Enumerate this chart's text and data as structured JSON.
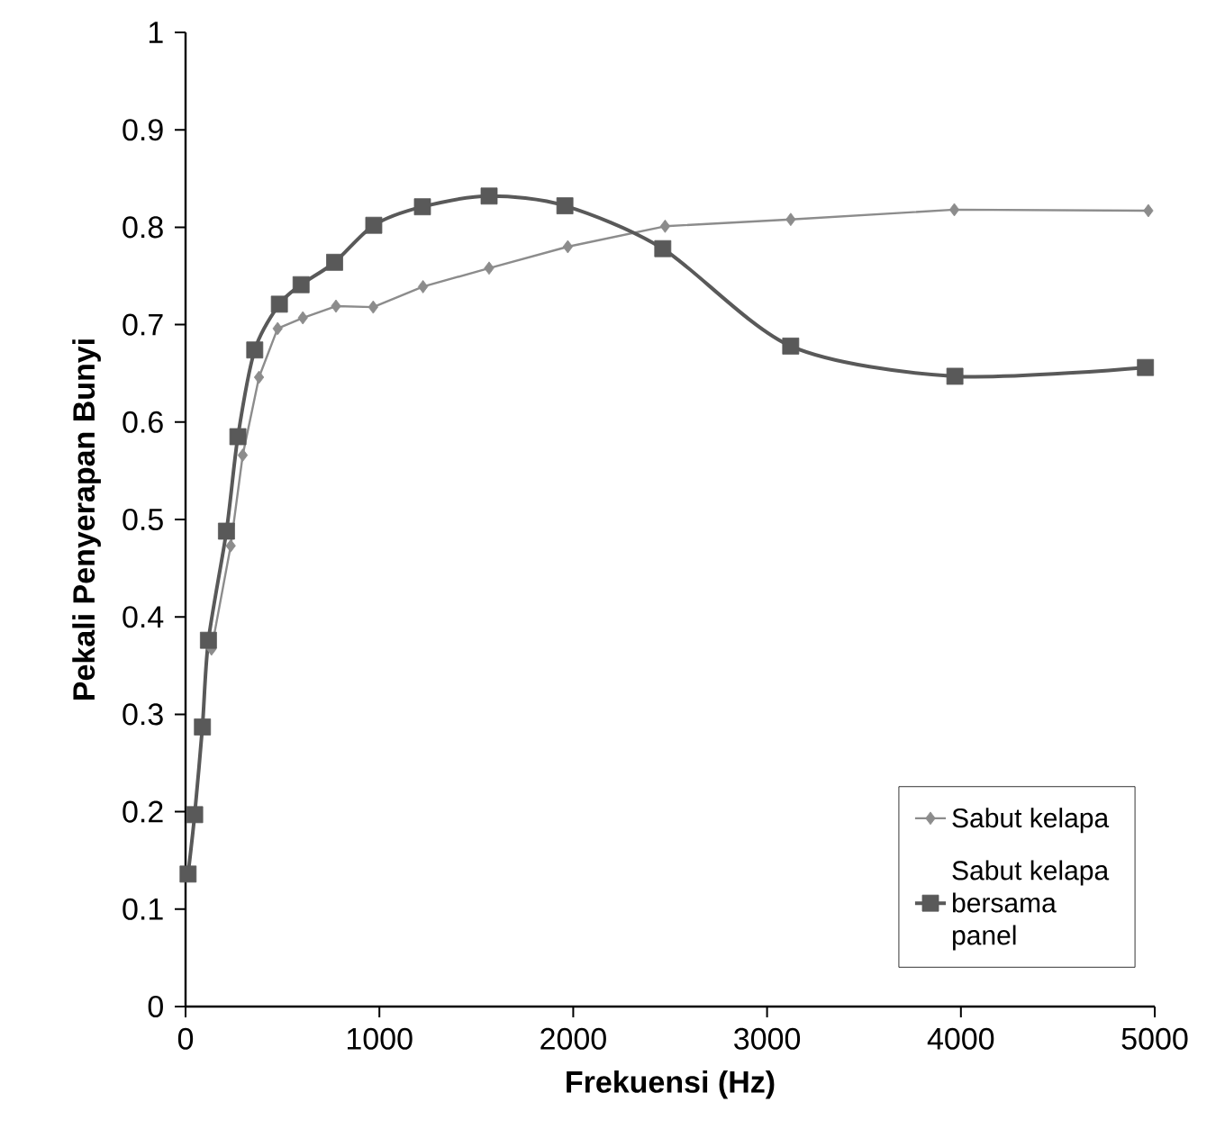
{
  "chart_data": {
    "type": "line",
    "xlabel": "Frekuensi (Hz)",
    "ylabel": "Pekali Penyerapan Bunyi",
    "xlim": [
      0,
      5000
    ],
    "ylim": [
      0,
      1
    ],
    "xticks": [
      0,
      1000,
      2000,
      3000,
      4000,
      5000
    ],
    "yticks": [
      0,
      0.1,
      0.2,
      0.3,
      0.4,
      0.5,
      0.6,
      0.7,
      0.8,
      0.9,
      1
    ],
    "grid": false,
    "legend": "bottom right",
    "series": [
      {
        "name": "Sabut kelapa",
        "color": "#8c8c8c",
        "marker": "diamond",
        "x": [
          134,
          233,
          295,
          379,
          475,
          605,
          776,
          968,
          1225,
          1566,
          1972,
          2474,
          3122,
          3966,
          4967
        ],
        "values": [
          0.367,
          0.473,
          0.566,
          0.646,
          0.696,
          0.707,
          0.719,
          0.718,
          0.739,
          0.758,
          0.78,
          0.801,
          0.808,
          0.818,
          0.817
        ]
      },
      {
        "name": "Sabut kelapa bersama panel",
        "color": "#595959",
        "marker": "square",
        "x": [
          13,
          47,
          87,
          118,
          211,
          270,
          357,
          484,
          596,
          769,
          971,
          1222,
          1566,
          1957,
          2462,
          3122,
          3969,
          4952
        ],
        "values": [
          0.136,
          0.197,
          0.287,
          0.376,
          0.488,
          0.585,
          0.674,
          0.721,
          0.741,
          0.764,
          0.802,
          0.821,
          0.832,
          0.822,
          0.778,
          0.678,
          0.647,
          0.656
        ]
      }
    ]
  }
}
